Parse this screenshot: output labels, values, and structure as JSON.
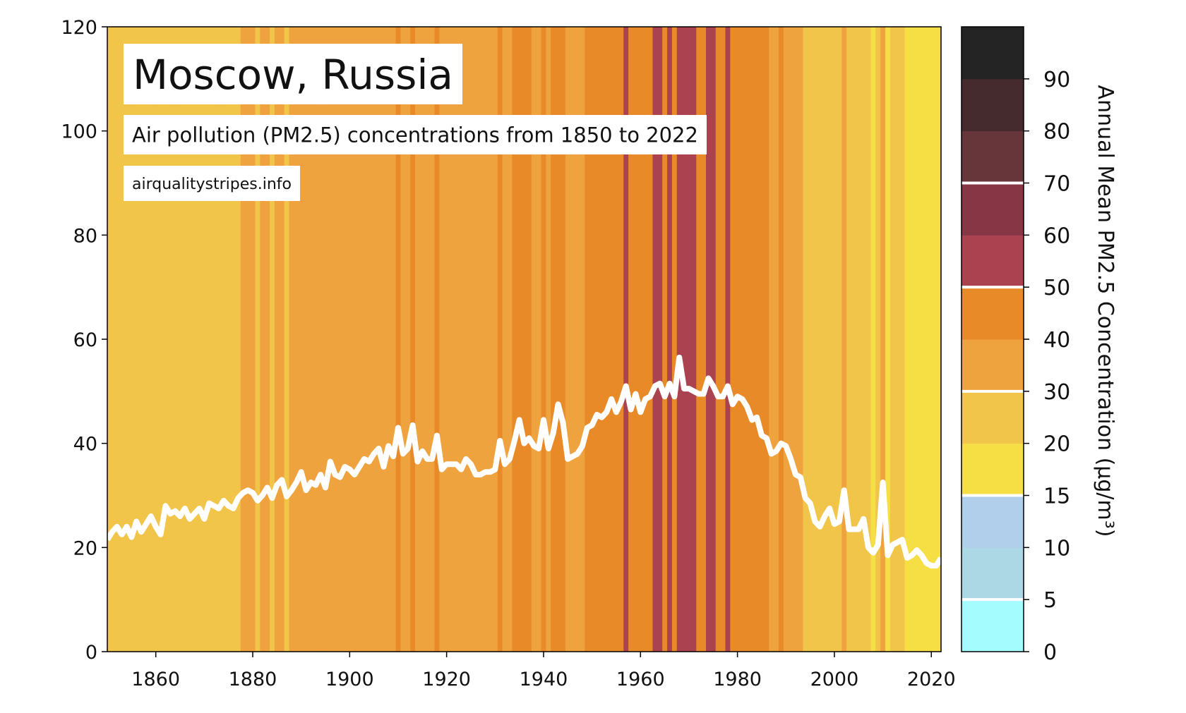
{
  "chart_data": {
    "type": "line",
    "title": "Moscow, Russia",
    "subtitle": "Air pollution (PM2.5) concentrations from 1850 to 2022",
    "source": "airqualitystripes.info",
    "x": [
      1850,
      1851,
      1852,
      1853,
      1854,
      1855,
      1856,
      1857,
      1858,
      1859,
      1860,
      1861,
      1862,
      1863,
      1864,
      1865,
      1866,
      1867,
      1868,
      1869,
      1870,
      1871,
      1872,
      1873,
      1874,
      1875,
      1876,
      1877,
      1878,
      1879,
      1880,
      1881,
      1882,
      1883,
      1884,
      1885,
      1886,
      1887,
      1888,
      1889,
      1890,
      1891,
      1892,
      1893,
      1894,
      1895,
      1896,
      1897,
      1898,
      1899,
      1900,
      1901,
      1902,
      1903,
      1904,
      1905,
      1906,
      1907,
      1908,
      1909,
      1910,
      1911,
      1912,
      1913,
      1914,
      1915,
      1916,
      1917,
      1918,
      1919,
      1920,
      1921,
      1922,
      1923,
      1924,
      1925,
      1926,
      1927,
      1928,
      1929,
      1930,
      1931,
      1932,
      1933,
      1934,
      1935,
      1936,
      1937,
      1938,
      1939,
      1940,
      1941,
      1942,
      1943,
      1944,
      1945,
      1946,
      1947,
      1948,
      1949,
      1950,
      1951,
      1952,
      1953,
      1954,
      1955,
      1956,
      1957,
      1958,
      1959,
      1960,
      1961,
      1962,
      1963,
      1964,
      1965,
      1966,
      1967,
      1968,
      1969,
      1970,
      1971,
      1972,
      1973,
      1974,
      1975,
      1976,
      1977,
      1978,
      1979,
      1980,
      1981,
      1982,
      1983,
      1984,
      1985,
      1986,
      1987,
      1988,
      1989,
      1990,
      1991,
      1992,
      1993,
      1994,
      1995,
      1996,
      1997,
      1998,
      1999,
      2000,
      2001,
      2002,
      2003,
      2004,
      2005,
      2006,
      2007,
      2008,
      2009,
      2010,
      2011,
      2012,
      2013,
      2014,
      2015,
      2016,
      2017,
      2018,
      2019,
      2020,
      2021,
      2022
    ],
    "series": [
      {
        "color": "#ffffff",
        "values": [
          21.5,
          23,
          24,
          22.5,
          24,
          22,
          25,
          23,
          24.5,
          26,
          24,
          22.5,
          28,
          26.5,
          27,
          26,
          27.5,
          25.5,
          26.5,
          27.5,
          25.5,
          28.5,
          28,
          27.5,
          29,
          28,
          27.5,
          29.5,
          30.5,
          31,
          30.5,
          29,
          30,
          31.5,
          29.5,
          32,
          33,
          29.8,
          31,
          32.5,
          34.5,
          31,
          32.5,
          32,
          34,
          31.5,
          36.5,
          34,
          33.5,
          35.5,
          35,
          34,
          35.5,
          37,
          36.5,
          38,
          39,
          35.5,
          39.5,
          37.5,
          43,
          38,
          39,
          43.5,
          36.5,
          38.5,
          37,
          37,
          41.5,
          35,
          36,
          36,
          36,
          35,
          37,
          36,
          34,
          34,
          34.5,
          34.5,
          35,
          40.5,
          36,
          37,
          40.5,
          44.5,
          40,
          41,
          39.5,
          39,
          44.5,
          39,
          42,
          47.5,
          44,
          37,
          37.5,
          38,
          39.5,
          43,
          43.5,
          45.5,
          45,
          46,
          48.5,
          46,
          48,
          51,
          46.5,
          49.5,
          46,
          48.5,
          49,
          51,
          51.5,
          49,
          51.5,
          49,
          56.5,
          50.5,
          50.5,
          50,
          49.5,
          49.5,
          52.5,
          51,
          49,
          49,
          51,
          47.5,
          49,
          48.5,
          47,
          44.5,
          45,
          41.5,
          41,
          38,
          38.5,
          40,
          39.5,
          37,
          34,
          33.5,
          29.5,
          28.5,
          25,
          24,
          26,
          27.5,
          24.5,
          25,
          31,
          23.5,
          23.5,
          23.5,
          25.5,
          20,
          19,
          20.5,
          32.5,
          18.5,
          20.5,
          21,
          21.5,
          18,
          18.5,
          19.5,
          18.5,
          17,
          16.5,
          16.5,
          18
        ]
      }
    ],
    "xlim": [
      1850,
      2022
    ],
    "xticks": [
      1860,
      1880,
      1900,
      1920,
      1940,
      1960,
      1980,
      2000,
      2020
    ],
    "ylim": [
      0,
      120
    ],
    "yticks": [
      0,
      20,
      40,
      60,
      80,
      100,
      120
    ],
    "colorbar": {
      "label": "Annual Mean PM2.5 Concentration (µg/m³)",
      "bounds": [
        0,
        5,
        10,
        15,
        20,
        30,
        40,
        50,
        60,
        70,
        80,
        90,
        100
      ],
      "colors": [
        "#a5fcff",
        "#acd8e5",
        "#b1cfeb",
        "#f6de45",
        "#f0c54a",
        "#efa33f",
        "#e88a27",
        "#ab424f",
        "#873646",
        "#66363a",
        "#462b2e",
        "#242424"
      ],
      "ticks": [
        0,
        5,
        10,
        15,
        20,
        30,
        40,
        50,
        60,
        70,
        80,
        90
      ],
      "highlight": [
        5,
        15,
        30,
        50,
        70
      ]
    }
  }
}
